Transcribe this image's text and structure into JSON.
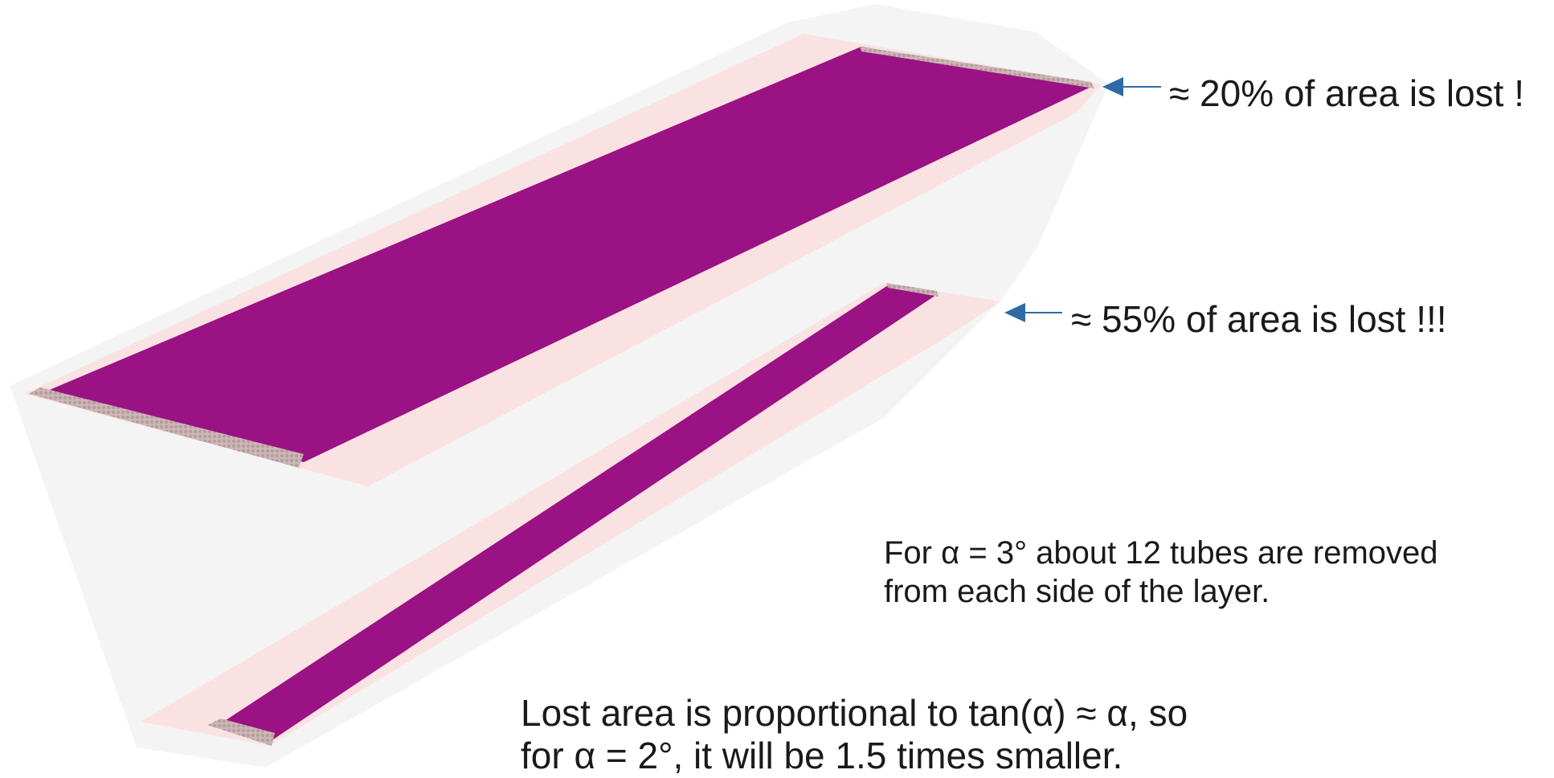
{
  "annotations": {
    "top_loss": "≈ 20% of area is lost !",
    "bottom_loss": "≈ 55% of area is lost !!!",
    "note_line1": "For α = 3° about 12 tubes are removed",
    "note_line2": "from each side of the layer.",
    "summary_line1": "Lost area is proportional to tan(α) ≈ α, so",
    "summary_line2": "for α = 2°, it will be 1.5 times smaller."
  },
  "colors": {
    "detector_layer": "#9a1283",
    "tube_end": "#c8b0b0",
    "envelope": "#f3f3f3",
    "frame": "#fbdada",
    "arrow": "#2e6aa6"
  }
}
